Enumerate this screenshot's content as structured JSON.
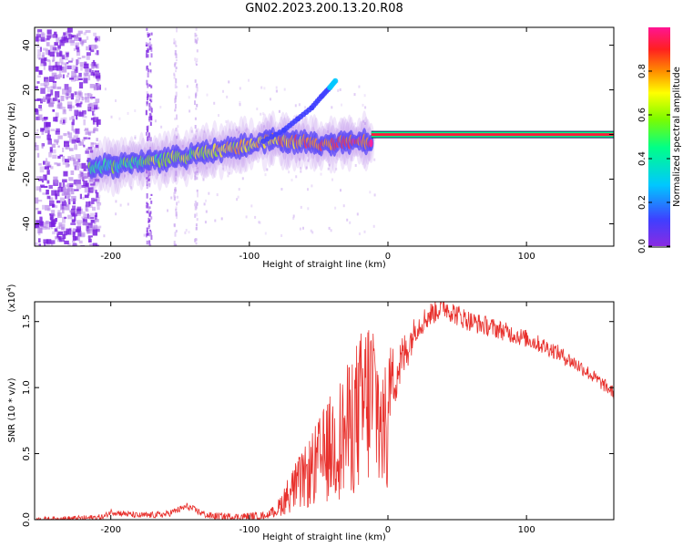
{
  "title": "GN02.2023.200.13.20.R08",
  "chart_data": [
    {
      "type": "heatmap",
      "xlabel": "Height of straight line (km)",
      "ylabel": "Frequency (Hz)",
      "xlim": [
        -255,
        163
      ],
      "ylim": [
        -50,
        48
      ],
      "xticks": [
        -200,
        -100,
        0,
        100
      ],
      "yticks": [
        -40,
        -20,
        0,
        20,
        40
      ],
      "colorbar": {
        "label": "Normalized spectral amplitude",
        "range": [
          0.0,
          1.0
        ],
        "ticks": [
          "0.0",
          "0.2",
          "0.4",
          "0.6",
          "0.8"
        ],
        "colormap": [
          "#8a2be2",
          "#3f3fff",
          "#00c8ff",
          "#00ff88",
          "#7cfc00",
          "#ffff00",
          "#ff8c00",
          "#ff2020",
          "#ff1493"
        ]
      },
      "ridge": {
        "height_km": [
          -215,
          -200,
          -180,
          -160,
          -140,
          -120,
          -100,
          -85,
          -70,
          -60,
          -50,
          -40,
          -30,
          -20,
          -15,
          -10,
          0,
          50,
          100,
          163
        ],
        "frequency_hz": [
          -15,
          -14,
          -12,
          -11,
          -9,
          -7,
          -5,
          -2,
          -3,
          -3,
          -5,
          -4,
          -3,
          -3,
          -4,
          -3,
          0,
          0,
          0,
          0
        ]
      },
      "branch": {
        "height_km": [
          -90,
          -75,
          -65,
          -55,
          -48,
          -42,
          -38
        ],
        "frequency_hz": [
          -3,
          2,
          7,
          12,
          17,
          21,
          24
        ]
      },
      "steady_line": {
        "from_km": -12,
        "to_km": 163,
        "frequency_hz": 0,
        "amplitude": 1.0
      }
    },
    {
      "type": "line",
      "xlabel": "Height of straight line (km)",
      "ylabel": "SNR (10 * v/v)",
      "y_multiplier": "(x10",
      "y_multiplier_exp": "4",
      "y_multiplier_close": ")",
      "xlim": [
        -255,
        163
      ],
      "ylim": [
        0.0,
        1.65
      ],
      "xticks": [
        -200,
        -100,
        0,
        100
      ],
      "yticks": [
        "0.0",
        "0.5",
        "1.0",
        "1.5"
      ],
      "color": "#e8302c",
      "envelope": {
        "x": [
          -255,
          -220,
          -205,
          -200,
          -180,
          -160,
          -145,
          -130,
          -110,
          -90,
          -80,
          -70,
          -60,
          -50,
          -40,
          -30,
          -25,
          -20,
          -15,
          -10,
          -5,
          0,
          10,
          20,
          30,
          40,
          50,
          60,
          80,
          100,
          120,
          140,
          163
        ],
        "y": [
          0.0,
          0.01,
          0.02,
          0.06,
          0.03,
          0.04,
          0.1,
          0.03,
          0.02,
          0.03,
          0.12,
          0.35,
          0.5,
          0.7,
          0.9,
          1.05,
          1.2,
          1.3,
          1.45,
          1.5,
          1.15,
          1.0,
          1.2,
          1.45,
          1.55,
          1.62,
          1.55,
          1.5,
          1.44,
          1.37,
          1.28,
          1.15,
          0.96
        ]
      },
      "noise_amp": {
        "x": [
          -255,
          -90,
          -80,
          -60,
          -40,
          -20,
          -10,
          0,
          20,
          60,
          163
        ],
        "y": [
          0.02,
          0.03,
          0.15,
          0.35,
          0.55,
          0.7,
          0.55,
          0.3,
          0.1,
          0.08,
          0.05
        ]
      }
    }
  ]
}
